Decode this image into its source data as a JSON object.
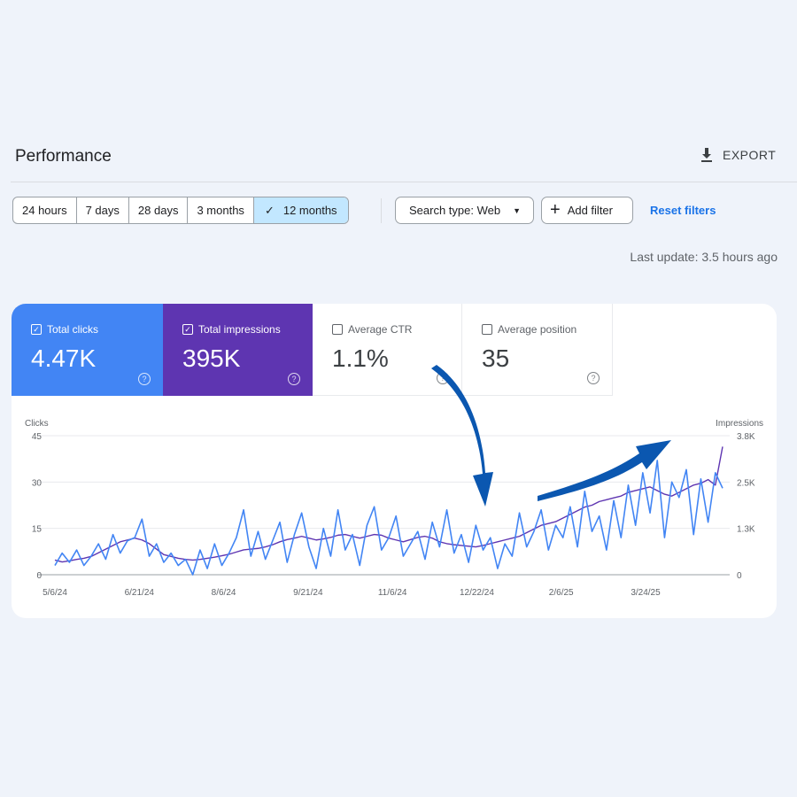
{
  "header": {
    "title": "Performance",
    "export_label": "EXPORT",
    "export_icon": "download-icon"
  },
  "filters": {
    "ranges": [
      {
        "label": "24 hours",
        "selected": false
      },
      {
        "label": "7 days",
        "selected": false
      },
      {
        "label": "28 days",
        "selected": false
      },
      {
        "label": "3 months",
        "selected": false
      },
      {
        "label": "12 months",
        "selected": true
      }
    ],
    "search_type": "Search type: Web",
    "add_filter": "Add filter",
    "reset": "Reset filters"
  },
  "last_update": "Last update: 3.5 hours ago",
  "metrics": [
    {
      "label": "Total clicks",
      "value": "4.47K",
      "checked": true,
      "color": "#4285f4"
    },
    {
      "label": "Total impressions",
      "value": "395K",
      "checked": true,
      "color": "#5e35b1"
    },
    {
      "label": "Average CTR",
      "value": "1.1%",
      "checked": false
    },
    {
      "label": "Average position",
      "value": "35",
      "checked": false
    }
  ],
  "chart_data": {
    "type": "line",
    "ylabel_left": "Clicks",
    "ylabel_right": "Impressions",
    "yticks_left": [
      "0",
      "15",
      "30",
      "45"
    ],
    "yticks_right": [
      "0",
      "1.3K",
      "2.5K",
      "3.8K"
    ],
    "ylim_left": [
      0,
      45
    ],
    "ylim_right": [
      0,
      3800
    ],
    "xticks": [
      "5/6/24",
      "6/21/24",
      "8/6/24",
      "9/21/24",
      "11/6/24",
      "12/22/24",
      "2/6/25",
      "3/24/25"
    ],
    "grid": true,
    "series": [
      {
        "name": "Clicks",
        "axis": "left",
        "color": "#4285f4",
        "values": [
          3,
          7,
          4,
          8,
          3,
          6,
          10,
          5,
          13,
          7,
          11,
          12,
          18,
          6,
          10,
          4,
          7,
          3,
          5,
          0,
          8,
          2,
          10,
          3,
          7,
          12,
          21,
          6,
          14,
          5,
          11,
          17,
          4,
          13,
          20,
          9,
          2,
          15,
          6,
          21,
          8,
          13,
          3,
          16,
          22,
          8,
          12,
          19,
          6,
          10,
          14,
          5,
          17,
          9,
          21,
          7,
          13,
          4,
          16,
          8,
          12,
          2,
          10,
          6,
          20,
          9,
          14,
          21,
          8,
          16,
          12,
          22,
          9,
          27,
          14,
          19,
          8,
          24,
          12,
          29,
          16,
          33,
          20,
          37,
          12,
          30,
          25,
          34,
          13,
          31,
          17,
          33,
          28
        ]
      },
      {
        "name": "Impressions",
        "axis": "right",
        "color": "#5e35b1",
        "values": [
          400,
          350,
          380,
          420,
          450,
          500,
          600,
          700,
          800,
          900,
          950,
          1000,
          950,
          850,
          700,
          550,
          500,
          450,
          420,
          400,
          420,
          450,
          480,
          520,
          560,
          620,
          680,
          700,
          720,
          760,
          820,
          900,
          960,
          1000,
          1050,
          1000,
          950,
          980,
          1020,
          1080,
          1100,
          1050,
          1000,
          1050,
          1100,
          1080,
          1000,
          950,
          900,
          960,
          1020,
          1050,
          1000,
          900,
          850,
          820,
          800,
          780,
          760,
          800,
          850,
          900,
          950,
          1000,
          1050,
          1150,
          1250,
          1350,
          1400,
          1450,
          1550,
          1650,
          1750,
          1850,
          1900,
          2000,
          2050,
          2100,
          2150,
          2250,
          2300,
          2350,
          2400,
          2300,
          2200,
          2150,
          2250,
          2350,
          2450,
          2500,
          2600,
          2450,
          3500
        ]
      }
    ]
  },
  "annotations": {
    "arrow_color": "#0b57b0"
  }
}
